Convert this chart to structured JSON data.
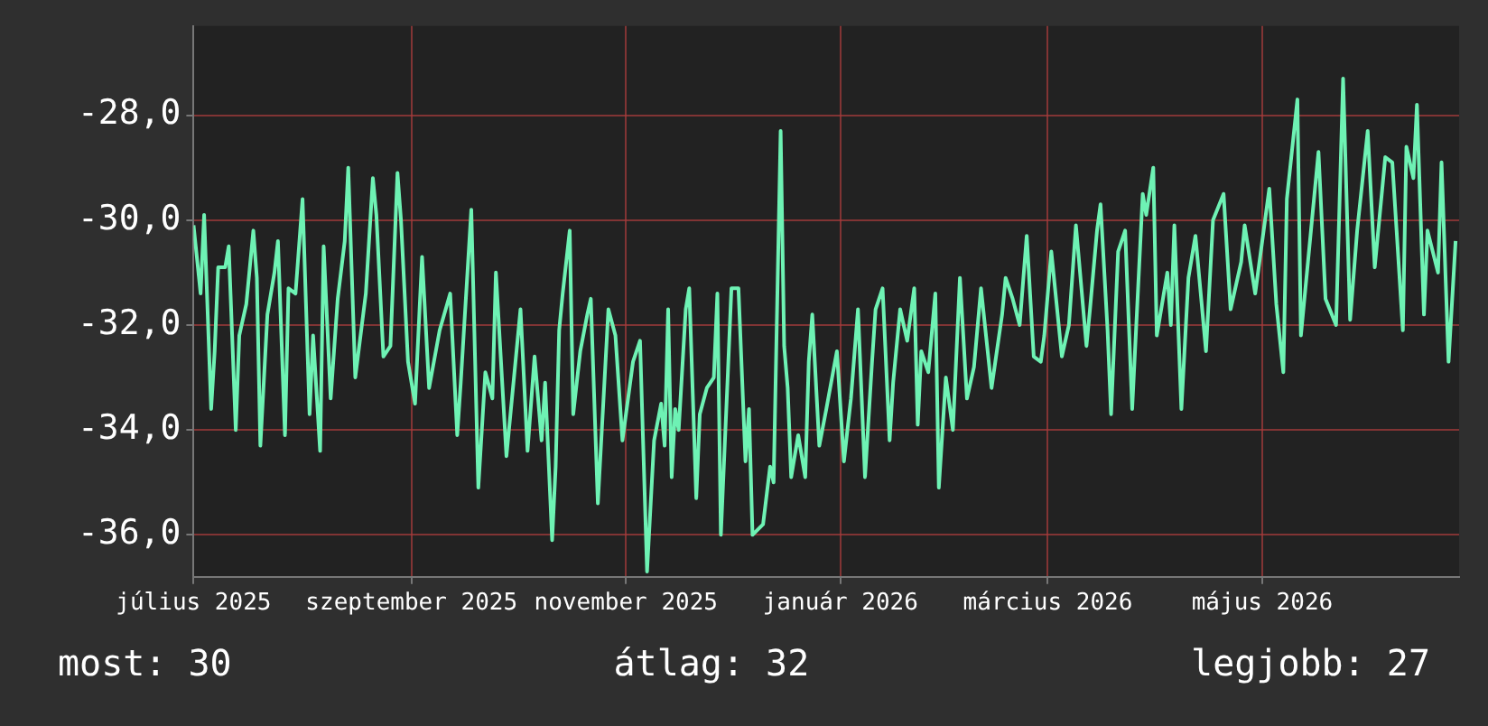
{
  "chart_data": {
    "type": "line",
    "x": [
      "2025-07-01",
      "2025-07-03",
      "2025-07-04",
      "2025-07-06",
      "2025-07-07",
      "2025-07-08",
      "2025-07-10",
      "2025-07-11",
      "2025-07-13",
      "2025-07-14",
      "2025-07-16",
      "2025-07-18",
      "2025-07-19",
      "2025-07-20",
      "2025-07-22",
      "2025-07-24",
      "2025-07-25",
      "2025-07-27",
      "2025-07-28",
      "2025-07-30",
      "2025-08-01",
      "2025-08-03",
      "2025-08-04",
      "2025-08-06",
      "2025-08-07",
      "2025-08-09",
      "2025-08-11",
      "2025-08-13",
      "2025-08-14",
      "2025-08-16",
      "2025-08-19",
      "2025-08-21",
      "2025-08-22",
      "2025-08-24",
      "2025-08-26",
      "2025-08-28",
      "2025-08-29",
      "2025-08-31",
      "2025-09-02",
      "2025-09-04",
      "2025-09-06",
      "2025-09-09",
      "2025-09-12",
      "2025-09-14",
      "2025-09-15",
      "2025-09-18",
      "2025-09-20",
      "2025-09-22",
      "2025-09-24",
      "2025-09-25",
      "2025-09-28",
      "2025-10-02",
      "2025-10-04",
      "2025-10-06",
      "2025-10-08",
      "2025-10-09",
      "2025-10-11",
      "2025-10-12",
      "2025-10-13",
      "2025-10-14",
      "2025-10-16",
      "2025-10-17",
      "2025-10-19",
      "2025-10-21",
      "2025-10-22",
      "2025-10-24",
      "2025-10-27",
      "2025-10-29",
      "2025-10-31",
      "2025-11-03",
      "2025-11-05",
      "2025-11-07",
      "2025-11-09",
      "2025-11-11",
      "2025-11-12",
      "2025-11-13",
      "2025-11-14",
      "2025-11-15",
      "2025-11-16",
      "2025-11-18",
      "2025-11-19",
      "2025-11-21",
      "2025-11-22",
      "2025-11-24",
      "2025-11-26",
      "2025-11-27",
      "2025-11-28",
      "2025-11-30",
      "2025-12-01",
      "2025-12-03",
      "2025-12-05",
      "2025-12-06",
      "2025-12-07",
      "2025-12-10",
      "2025-12-12",
      "2025-12-13",
      "2025-12-15",
      "2025-12-16",
      "2025-12-17",
      "2025-12-18",
      "2025-12-20",
      "2025-12-22",
      "2025-12-23",
      "2025-12-24",
      "2025-12-26",
      "2025-12-28",
      "2025-12-31",
      "2026-01-02",
      "2026-01-04",
      "2026-01-06",
      "2026-01-08",
      "2026-01-10",
      "2026-01-11",
      "2026-01-13",
      "2026-01-15",
      "2026-01-16",
      "2026-01-18",
      "2026-01-20",
      "2026-01-22",
      "2026-01-23",
      "2026-01-24",
      "2026-01-26",
      "2026-01-28",
      "2026-01-29",
      "2026-01-31",
      "2026-02-02",
      "2026-02-04",
      "2026-02-06",
      "2026-02-08",
      "2026-02-10",
      "2026-02-13",
      "2026-02-16",
      "2026-02-17",
      "2026-02-19",
      "2026-02-21",
      "2026-02-23",
      "2026-02-25",
      "2026-02-27",
      "2026-02-28",
      "2026-03-02",
      "2026-03-05",
      "2026-03-07",
      "2026-03-09",
      "2026-03-12",
      "2026-03-13",
      "2026-03-15",
      "2026-03-16",
      "2026-03-18",
      "2026-03-19",
      "2026-03-21",
      "2026-03-23",
      "2026-03-25",
      "2026-03-28",
      "2026-03-29",
      "2026-03-31",
      "2026-04-01",
      "2026-04-04",
      "2026-04-05",
      "2026-04-06",
      "2026-04-08",
      "2026-04-10",
      "2026-04-12",
      "2026-04-15",
      "2026-04-17",
      "2026-04-20",
      "2026-04-22",
      "2026-04-25",
      "2026-04-26",
      "2026-04-29",
      "2026-05-03",
      "2026-05-05",
      "2026-05-07",
      "2026-05-08",
      "2026-05-11",
      "2026-05-12",
      "2026-05-14",
      "2026-05-17",
      "2026-05-19",
      "2026-05-22",
      "2026-05-24",
      "2026-05-26",
      "2026-05-28",
      "2026-05-31",
      "2026-06-02",
      "2026-06-05",
      "2026-06-07",
      "2026-06-10",
      "2026-06-11",
      "2026-06-13",
      "2026-06-14",
      "2026-06-16",
      "2026-06-17",
      "2026-06-20",
      "2026-06-21",
      "2026-06-23",
      "2026-06-25"
    ],
    "series": [
      {
        "color": "#6ef2b4",
        "values": [
          -30.1,
          -31.4,
          -29.9,
          -33.6,
          -32.5,
          -30.9,
          -30.9,
          -30.5,
          -34.0,
          -32.2,
          -31.6,
          -30.2,
          -31.1,
          -34.3,
          -31.8,
          -31.0,
          -30.4,
          -34.1,
          -31.3,
          -31.4,
          -29.6,
          -33.7,
          -32.2,
          -34.4,
          -30.5,
          -33.4,
          -31.5,
          -30.4,
          -29.0,
          -33.0,
          -31.4,
          -29.2,
          -29.9,
          -32.6,
          -32.4,
          -29.1,
          -30.0,
          -32.7,
          -33.5,
          -30.7,
          -33.2,
          -32.1,
          -31.4,
          -34.1,
          -33.1,
          -29.8,
          -35.1,
          -32.9,
          -33.4,
          -31.0,
          -34.5,
          -31.7,
          -34.4,
          -32.6,
          -34.2,
          -33.1,
          -36.1,
          -34.7,
          -32.1,
          -31.4,
          -30.2,
          -33.7,
          -32.5,
          -31.8,
          -31.5,
          -35.4,
          -31.7,
          -32.2,
          -34.2,
          -32.7,
          -32.3,
          -36.7,
          -34.2,
          -33.5,
          -34.3,
          -31.7,
          -34.9,
          -33.6,
          -34.0,
          -31.7,
          -31.3,
          -35.3,
          -33.7,
          -33.2,
          -33.0,
          -31.4,
          -36.0,
          -32.9,
          -31.3,
          -31.3,
          -34.6,
          -33.6,
          -36.0,
          -35.8,
          -34.7,
          -35.0,
          -28.3,
          -32.4,
          -33.2,
          -34.9,
          -34.1,
          -34.9,
          -32.7,
          -31.8,
          -34.3,
          -33.6,
          -32.5,
          -34.6,
          -33.4,
          -31.7,
          -34.9,
          -32.7,
          -31.7,
          -31.3,
          -34.2,
          -33.1,
          -31.7,
          -32.3,
          -31.3,
          -33.9,
          -32.5,
          -32.9,
          -31.4,
          -35.1,
          -33.0,
          -34.0,
          -31.1,
          -33.4,
          -32.8,
          -31.3,
          -33.2,
          -31.8,
          -31.1,
          -31.5,
          -32.0,
          -30.3,
          -32.6,
          -32.7,
          -32.2,
          -30.6,
          -32.6,
          -32.0,
          -30.1,
          -32.4,
          -31.7,
          -30.2,
          -29.7,
          -32.1,
          -33.7,
          -30.6,
          -30.2,
          -33.6,
          -29.5,
          -29.9,
          -29.0,
          -32.2,
          -31.0,
          -32.0,
          -30.1,
          -33.6,
          -31.1,
          -30.3,
          -32.5,
          -30.0,
          -29.5,
          -31.7,
          -30.8,
          -30.1,
          -31.4,
          -29.4,
          -31.6,
          -32.9,
          -29.6,
          -27.7,
          -32.2,
          -30.8,
          -28.7,
          -31.5,
          -32.0,
          -27.3,
          -31.9,
          -30.2,
          -28.3,
          -30.9,
          -28.8,
          -28.9,
          -32.1,
          -28.6,
          -29.2,
          -27.8,
          -31.8,
          -30.2,
          -31.0,
          -28.9,
          -32.7,
          -30.4
        ]
      }
    ],
    "xlim": [
      "2025-07-01",
      "2026-06-26"
    ],
    "xticks": [
      {
        "value": "2025-07-01",
        "label": "július 2025"
      },
      {
        "value": "2025-09-01",
        "label": "szeptember 2025"
      },
      {
        "value": "2025-11-01",
        "label": "november 2025"
      },
      {
        "value": "2026-01-01",
        "label": "január 2026"
      },
      {
        "value": "2026-03-01",
        "label": "március 2026"
      },
      {
        "value": "2026-05-01",
        "label": "május 2026"
      }
    ],
    "ylim": [
      -36.8,
      -26.3
    ],
    "yticks": [
      {
        "value": -36,
        "label": "-36,0"
      },
      {
        "value": -34,
        "label": "-34,0"
      },
      {
        "value": -32,
        "label": "-32,0"
      },
      {
        "value": -30,
        "label": "-30,0"
      },
      {
        "value": -28,
        "label": "-28,0"
      }
    ],
    "grid": true,
    "annotations": [
      "most: 30",
      "átlag: 32",
      "legjobb: 27"
    ]
  }
}
